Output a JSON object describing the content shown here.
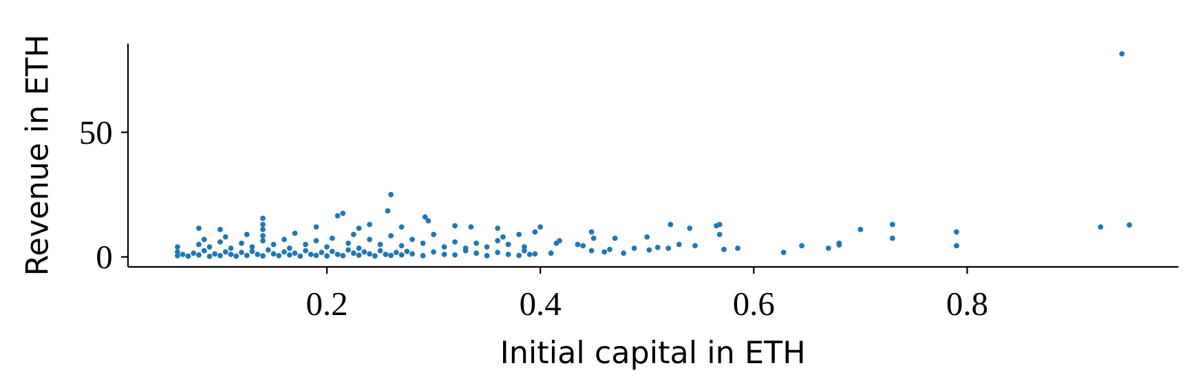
{
  "chart_data": {
    "type": "scatter",
    "x_label": "Initial capital in ETH",
    "y_label": "Revenue in ETH",
    "color": "#1f77b4",
    "xlim": [
      0.0136,
      0.998
    ],
    "xticks": [
      0.2,
      0.4,
      0.6,
      0.8
    ],
    "ylim": [
      -4,
      85.6
    ],
    "yticks": [
      0,
      50
    ],
    "grid": false,
    "x": [
      0.06,
      0.06,
      0.06,
      0.065,
      0.07,
      0.075,
      0.08,
      0.085,
      0.09,
      0.095,
      0.1,
      0.105,
      0.11,
      0.115,
      0.12,
      0.125,
      0.13,
      0.135,
      0.14,
      0.145,
      0.15,
      0.155,
      0.16,
      0.165,
      0.17,
      0.175,
      0.18,
      0.185,
      0.19,
      0.195,
      0.2,
      0.205,
      0.21,
      0.215,
      0.22,
      0.225,
      0.23,
      0.235,
      0.24,
      0.245,
      0.25,
      0.255,
      0.26,
      0.265,
      0.27,
      0.275,
      0.28,
      0.29,
      0.3,
      0.31,
      0.32,
      0.33,
      0.34,
      0.35,
      0.36,
      0.37,
      0.38,
      0.385,
      0.395,
      0.08,
      0.085,
      0.09,
      0.1,
      0.105,
      0.11,
      0.12,
      0.125,
      0.13,
      0.14,
      0.14,
      0.15,
      0.16,
      0.165,
      0.17,
      0.18,
      0.19,
      0.2,
      0.205,
      0.22,
      0.225,
      0.23,
      0.24,
      0.25,
      0.26,
      0.27,
      0.28,
      0.29,
      0.3,
      0.31,
      0.32,
      0.33,
      0.34,
      0.35,
      0.36,
      0.365,
      0.37,
      0.38,
      0.385,
      0.08,
      0.1,
      0.14,
      0.14,
      0.14,
      0.19,
      0.21,
      0.215,
      0.23,
      0.24,
      0.257,
      0.26,
      0.27,
      0.292,
      0.295,
      0.32,
      0.335,
      0.36,
      0.4,
      0.395,
      0.945,
      0.952,
      0.925,
      0.79,
      0.79,
      0.73,
      0.73,
      0.7,
      0.68,
      0.68,
      0.67,
      0.645,
      0.628,
      0.585,
      0.572,
      0.568,
      0.565,
      0.568,
      0.545,
      0.54,
      0.53,
      0.522,
      0.52,
      0.51,
      0.502,
      0.5,
      0.488,
      0.478,
      0.47,
      0.465,
      0.46,
      0.45,
      0.448,
      0.448,
      0.44,
      0.435,
      0.418,
      0.415,
      0.41,
      0.39
    ],
    "values": [
      0.5,
      2,
      4,
      1,
      0.3,
      1.5,
      0.8,
      2.5,
      0.2,
      1.2,
      0.5,
      2,
      1,
      0.3,
      1.8,
      0.6,
      2.2,
      1,
      0.4,
      2.8,
      1.2,
      0.5,
      2,
      0.8,
      1.5,
      0.3,
      2.5,
      1,
      0.6,
      1.8,
      0.4,
      2.2,
      1,
      0.5,
      2.8,
      1.5,
      0.7,
      2,
      1.2,
      0.4,
      2.5,
      1,
      0.6,
      1.8,
      0.8,
      2.2,
      1.2,
      0.5,
      2,
      1,
      0.8,
      2.5,
      1.5,
      0.5,
      1.8,
      1,
      0.6,
      2.5,
      1.2,
      5,
      7,
      4,
      6,
      8,
      3.5,
      5.5,
      9,
      4,
      6.5,
      8.5,
      5,
      7,
      3.5,
      9.5,
      5,
      6.5,
      4,
      7.5,
      5.5,
      9,
      3.5,
      7,
      5,
      8.5,
      4.5,
      7,
      5.5,
      9,
      4,
      6,
      3.5,
      5.5,
      4,
      6.5,
      8,
      5,
      9,
      4,
      11.5,
      11,
      11,
      13,
      15.5,
      12,
      16.5,
      17.5,
      11.5,
      13,
      18.5,
      25,
      12,
      16,
      14.5,
      12.5,
      12,
      11.5,
      12,
      10,
      81.5,
      12.8,
      12,
      10,
      4.5,
      13,
      7.5,
      11,
      5.5,
      4.8,
      3.5,
      4.5,
      1.8,
      3.5,
      3,
      13,
      12.5,
      9,
      4.5,
      11.5,
      5,
      13,
      3.5,
      3.8,
      2.8,
      8,
      3.5,
      1.5,
      7.5,
      3,
      2,
      7.5,
      10,
      2.5,
      4.5,
      5,
      6.5,
      5.5,
      1.5,
      1
    ]
  }
}
